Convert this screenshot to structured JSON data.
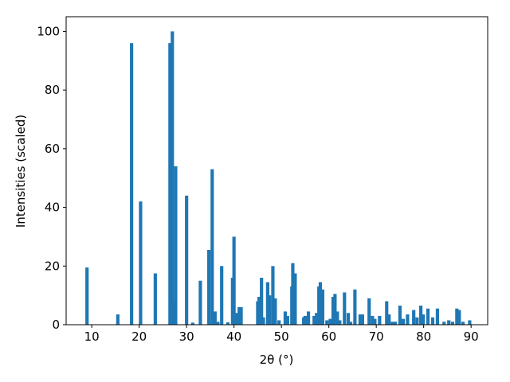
{
  "chart_data": {
    "type": "bar",
    "x_label": "2θ (°)",
    "y_label": "Intensities (scaled)",
    "color": "#1f77b4",
    "x": [
      9.0,
      15.5,
      18.4,
      20.3,
      23.4,
      26.5,
      27.0,
      27.3,
      27.7,
      30.0,
      31.3,
      32.9,
      34.7,
      35.4,
      36.0,
      36.6,
      37.4,
      38.7,
      39.7,
      40.0,
      40.6,
      41.1,
      41.5,
      45.0,
      45.3,
      45.8,
      46.2,
      47.1,
      47.5,
      48.2,
      48.7,
      49.5,
      50.8,
      51.3,
      52.2,
      52.4,
      52.9,
      54.7,
      55.0,
      55.7,
      56.9,
      57.4,
      57.9,
      58.2,
      58.7,
      59.6,
      60.3,
      60.9,
      61.3,
      61.8,
      62.3,
      63.3,
      64.1,
      64.6,
      65.5,
      66.6,
      67.1,
      68.5,
      69.2,
      69.7,
      70.7,
      72.2,
      72.7,
      73.4,
      74.0,
      75.0,
      75.7,
      76.6,
      77.9,
      78.6,
      79.4,
      79.9,
      80.9,
      81.9,
      82.9,
      84.3,
      85.3,
      86.1,
      87.0,
      87.5,
      88.3,
      89.7
    ],
    "values": [
      19.5,
      3.5,
      96,
      42,
      17.5,
      96,
      100,
      8,
      54,
      44,
      0.7,
      15,
      25.5,
      53,
      4.5,
      1,
      20,
      0.8,
      16,
      30,
      4,
      6,
      6,
      8,
      9.5,
      16,
      2.5,
      14.5,
      10,
      20,
      9,
      1.5,
      4.5,
      3,
      13,
      21,
      17.5,
      2.5,
      3,
      4.5,
      3,
      4,
      13,
      14.5,
      12,
      1.5,
      2,
      9.5,
      10.5,
      4.5,
      1.5,
      11,
      4,
      1,
      12,
      3.5,
      3.5,
      9,
      3,
      2,
      3,
      8,
      3.5,
      1,
      1,
      6.5,
      2,
      3.5,
      5,
      2.5,
      6.5,
      3.5,
      5.5,
      2.5,
      5.5,
      1,
      1.5,
      1,
      5.5,
      5,
      1,
      1.5
    ],
    "xlim": [
      4.6,
      93.5
    ],
    "ylim": [
      0,
      105
    ],
    "xticks": [
      10,
      20,
      30,
      40,
      50,
      60,
      70,
      80,
      90
    ],
    "yticks": [
      0,
      20,
      40,
      60,
      80,
      100
    ]
  }
}
